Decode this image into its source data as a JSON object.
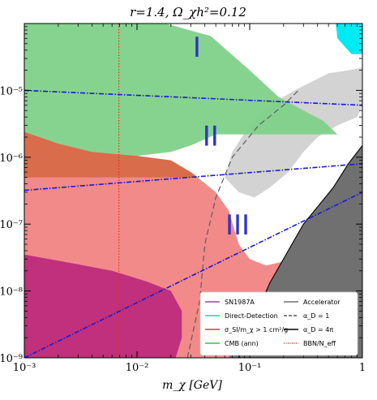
{
  "chart_data": {
    "type": "area",
    "title": "r=1.4, Ω_χh²=0.12",
    "xlabel": "m_χ [GeV]",
    "ylabel": "",
    "xscale": "log",
    "yscale": "log",
    "xlim": [
      0.001,
      1
    ],
    "ylim": [
      1e-09,
      0.0001
    ],
    "x_ticks": [
      {
        "value": 0.001,
        "label": "10⁻³"
      },
      {
        "value": 0.01,
        "label": "10⁻²"
      },
      {
        "value": 0.1,
        "label": "10⁻¹"
      },
      {
        "value": 1,
        "label": "1"
      }
    ],
    "y_ticks": [
      {
        "value": 1e-05,
        "label": "10⁻⁵"
      },
      {
        "value": 1e-06,
        "label": "10⁻⁶"
      },
      {
        "value": 1e-07,
        "label": "10⁻⁷"
      },
      {
        "value": 1e-08,
        "label": "10⁻⁸"
      },
      {
        "value": 1e-09,
        "label": "10⁻⁹"
      }
    ],
    "region_labels": [
      {
        "text": "I",
        "x": 0.034,
        "y": 3.2e-05
      },
      {
        "text": "II",
        "x": 0.045,
        "y": 1.5e-06
      },
      {
        "text": "III",
        "x": 0.078,
        "y": 7e-08
      }
    ],
    "legend": {
      "placement": "bottom-right",
      "entries": [
        {
          "label": "SN1987A",
          "style": "solid",
          "color": "#a63fa8"
        },
        {
          "label": "Direct-Detection",
          "style": "solid",
          "color": "#00d8e8"
        },
        {
          "label": "σ_SI/m_χ > 1 cm²/g",
          "style": "solid",
          "color": "#e23a24"
        },
        {
          "label": "CMB (ann)",
          "style": "solid",
          "color": "#32c832"
        },
        {
          "label": "Accelerator",
          "style": "solid",
          "color": "#707070"
        },
        {
          "label": "α_D = 1",
          "style": "dashed",
          "color": "#555555"
        },
        {
          "label": "α_D = 4π",
          "style": "solid",
          "color": "#000000"
        },
        {
          "label": "BBN/N_eff",
          "style": "dotted",
          "color": "#e23a24"
        }
      ]
    },
    "colors": {
      "cmb_fill": "#7fd18a",
      "sidm_fill": "#f28a8a",
      "sidm_dark_fill": "#ef6f6f",
      "sn_fill": "#c0307c",
      "direct_fill": "#00eaf2",
      "accel_fill": "#707070",
      "allowed_gray": "#d3d3d3",
      "blue_line": "#1a1ad0",
      "bbn_line": "#e0301e"
    },
    "blue_lines": [
      {
        "points": [
          [
            0.001,
            1e-05
          ],
          [
            1,
            6e-06
          ]
        ]
      },
      {
        "points": [
          [
            0.001,
            3.2e-07
          ],
          [
            1,
            8e-07
          ]
        ]
      },
      {
        "points": [
          [
            0.001,
            1e-09
          ],
          [
            1,
            3e-07
          ]
        ]
      }
    ],
    "bbn_line_x": 0.0069,
    "alpha1_curve": [
      [
        0.028,
        1e-09
      ],
      [
        0.036,
        7e-09
      ],
      [
        0.04,
        5e-08
      ],
      [
        0.05,
        2.5e-07
      ],
      [
        0.07,
        1e-06
      ],
      [
        0.12,
        3e-06
      ],
      [
        0.2,
        6e-06
      ],
      [
        0.27,
        1e-05
      ]
    ],
    "alpha4pi_curve": [
      [
        0.08,
        1e-09
      ],
      [
        0.15,
        1.3e-08
      ],
      [
        0.3,
        1e-07
      ],
      [
        0.55,
        3.5e-07
      ],
      [
        0.75,
        8e-07
      ],
      [
        1,
        1.5e-06
      ]
    ],
    "regions": {
      "cmb": [
        [
          0.001,
          0.0001
        ],
        [
          0.018,
          0.0001
        ],
        [
          0.03,
          6e-05
        ],
        [
          0.06,
          2e-05
        ],
        [
          0.1,
          1e-05
        ],
        [
          0.15,
          6e-06
        ],
        [
          0.25,
          4e-06
        ],
        [
          0.4,
          3e-06
        ],
        [
          0.6,
          1.8e-06
        ],
        [
          0.9,
          2.6e-06
        ],
        [
          0.95,
          3e-06
        ],
        [
          0.9,
          4e-06
        ],
        [
          0.5,
          7e-06
        ],
        [
          0.3,
          1.1e-05
        ],
        [
          0.2,
          1.4e-05
        ],
        [
          0.12,
          1.8e-05
        ],
        [
          0.08,
          2.4e-05
        ],
        [
          0.045,
          4e-05
        ],
        [
          0.03,
          6e-05
        ]
      ],
      "cmb_outline": [
        [
          0.001,
          0.0001
        ],
        [
          0.018,
          0.0001
        ],
        [
          0.045,
          6.5e-05
        ],
        [
          0.1,
          2e-05
        ],
        [
          0.18,
          8e-06
        ],
        [
          0.3,
          5e-06
        ],
        [
          0.45,
          3.5e-06
        ],
        [
          0.6,
          2.2e-06
        ],
        [
          0.05,
          2.2e-06
        ],
        [
          0.03,
          1.5e-06
        ],
        [
          0.02,
          1.2e-06
        ],
        [
          0.01,
          1.05e-06
        ],
        [
          0.004,
          1.2e-06
        ],
        [
          0.002,
          1.6e-06
        ],
        [
          0.001,
          2.4e-06
        ]
      ],
      "sidm": [
        [
          0.001,
          2.4e-06
        ],
        [
          0.002,
          1.6e-06
        ],
        [
          0.004,
          1.2e-06
        ],
        [
          0.01,
          1.05e-06
        ],
        [
          0.02,
          9e-07
        ],
        [
          0.03,
          6e-07
        ],
        [
          0.05,
          3e-07
        ],
        [
          0.065,
          1.6e-07
        ],
        [
          0.08,
          5e-08
        ],
        [
          0.1,
          3e-08
        ],
        [
          0.14,
          2.4e-08
        ],
        [
          0.25,
          3e-08
        ],
        [
          0.25,
          1.1e-08
        ],
        [
          0.18,
          6e-09
        ],
        [
          0.12,
          3e-09
        ],
        [
          0.07,
          1e-09
        ],
        [
          0.001,
          1e-09
        ]
      ],
      "sn": [
        [
          0.001,
          3.5e-08
        ],
        [
          0.003,
          2.5e-08
        ],
        [
          0.006,
          2e-08
        ],
        [
          0.012,
          1.4e-08
        ],
        [
          0.02,
          1e-08
        ],
        [
          0.025,
          5e-09
        ],
        [
          0.025,
          2e-09
        ],
        [
          0.022,
          1e-09
        ],
        [
          0.001,
          1e-09
        ]
      ],
      "direct": [
        [
          0.58,
          0.0001
        ],
        [
          1,
          0.0001
        ],
        [
          1,
          3.5e-05
        ],
        [
          0.8,
          3.5e-05
        ],
        [
          0.6,
          6e-05
        ]
      ],
      "accel": [
        [
          0.065,
          1e-09
        ],
        [
          0.15,
          1.3e-08
        ],
        [
          0.3,
          1e-07
        ],
        [
          0.55,
          3.5e-07
        ],
        [
          0.75,
          8e-07
        ],
        [
          1,
          1.5e-06
        ],
        [
          1,
          1e-09
        ]
      ],
      "gray": [
        [
          0.07,
          1.2e-06
        ],
        [
          0.1,
          3e-06
        ],
        [
          0.15,
          6e-06
        ],
        [
          0.25,
          1e-05
        ],
        [
          0.5,
          1.8e-05
        ],
        [
          0.75,
          2e-05
        ],
        [
          1,
          2.2e-05
        ],
        [
          1,
          6e-06
        ],
        [
          0.9,
          4e-06
        ],
        [
          0.6,
          3e-06
        ],
        [
          0.4,
          2e-06
        ],
        [
          0.3,
          1.2e-06
        ],
        [
          0.22,
          6e-07
        ],
        [
          0.15,
          3.5e-07
        ],
        [
          0.11,
          2.5e-07
        ],
        [
          0.08,
          3e-07
        ],
        [
          0.06,
          5e-07
        ]
      ]
    }
  }
}
